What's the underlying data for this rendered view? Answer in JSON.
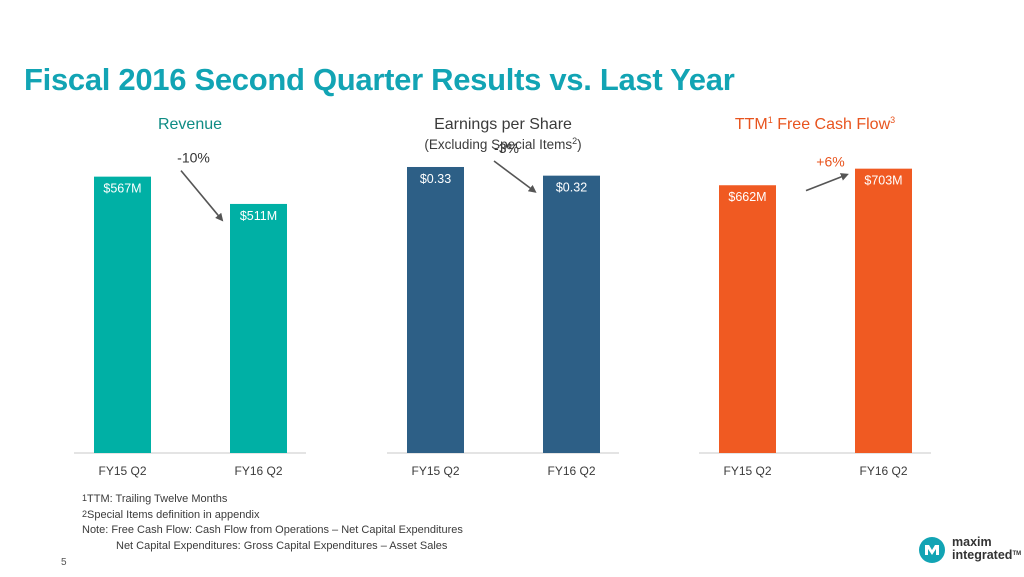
{
  "page_title": "Fiscal 2016 Second Quarter Results vs. Last Year",
  "chart_data": [
    {
      "type": "bar",
      "title": "Revenue",
      "categories": [
        "FY15 Q2",
        "FY16 Q2"
      ],
      "values": [
        567,
        511
      ],
      "value_labels": [
        "$567M",
        "$511M"
      ],
      "change_label": "-10%",
      "units": "$M",
      "ylim": [
        0,
        595
      ],
      "color": "#00b0a5",
      "label_color": "#ffffff",
      "change_color": "#333333"
    },
    {
      "type": "bar",
      "title": "Earnings per Share",
      "subtitle": "(Excluding Special Items",
      "subtitle_sup": "2",
      "subtitle_end": ")",
      "categories": [
        "FY15 Q2",
        "FY16 Q2"
      ],
      "values": [
        0.33,
        0.32
      ],
      "value_labels": [
        "$0.33",
        "$0.32"
      ],
      "change_label": "-3%",
      "units": "$",
      "ylim": [
        0,
        0.3346
      ],
      "color": "#2d5f86",
      "label_color": "#ffffff",
      "change_color": "#333333"
    },
    {
      "type": "bar",
      "title": "TTM",
      "title_sup": "1",
      "title_rest": " Free Cash Flow",
      "title_sup2": "3",
      "categories": [
        "FY15 Q2",
        "FY16 Q2"
      ],
      "values": [
        662,
        703
      ],
      "value_labels": [
        "$662M",
        "$703M"
      ],
      "change_label": "+6%",
      "units": "$M",
      "ylim": [
        0,
        717
      ],
      "color": "#f05a22",
      "label_color": "#ffffff",
      "change_color": "#e8541e"
    }
  ],
  "footnotes": {
    "f1_sup": "1",
    "f1": "TTM: Trailing Twelve Months",
    "f2_sup": "2",
    "f2": "Special Items definition in appendix",
    "note": "Note: Free Cash Flow: Cash Flow from Operations – Net Capital Expenditures",
    "note2": "Net Capital Expenditures: Gross Capital Expenditures – Asset Sales"
  },
  "page_number": "5",
  "logo": {
    "line1": "maxim",
    "line2": "integrated",
    "tm": "TM"
  },
  "colors": {
    "title": "#12a4b4",
    "revenue_title": "#0e8c84",
    "fcf_title": "#e8541e"
  }
}
